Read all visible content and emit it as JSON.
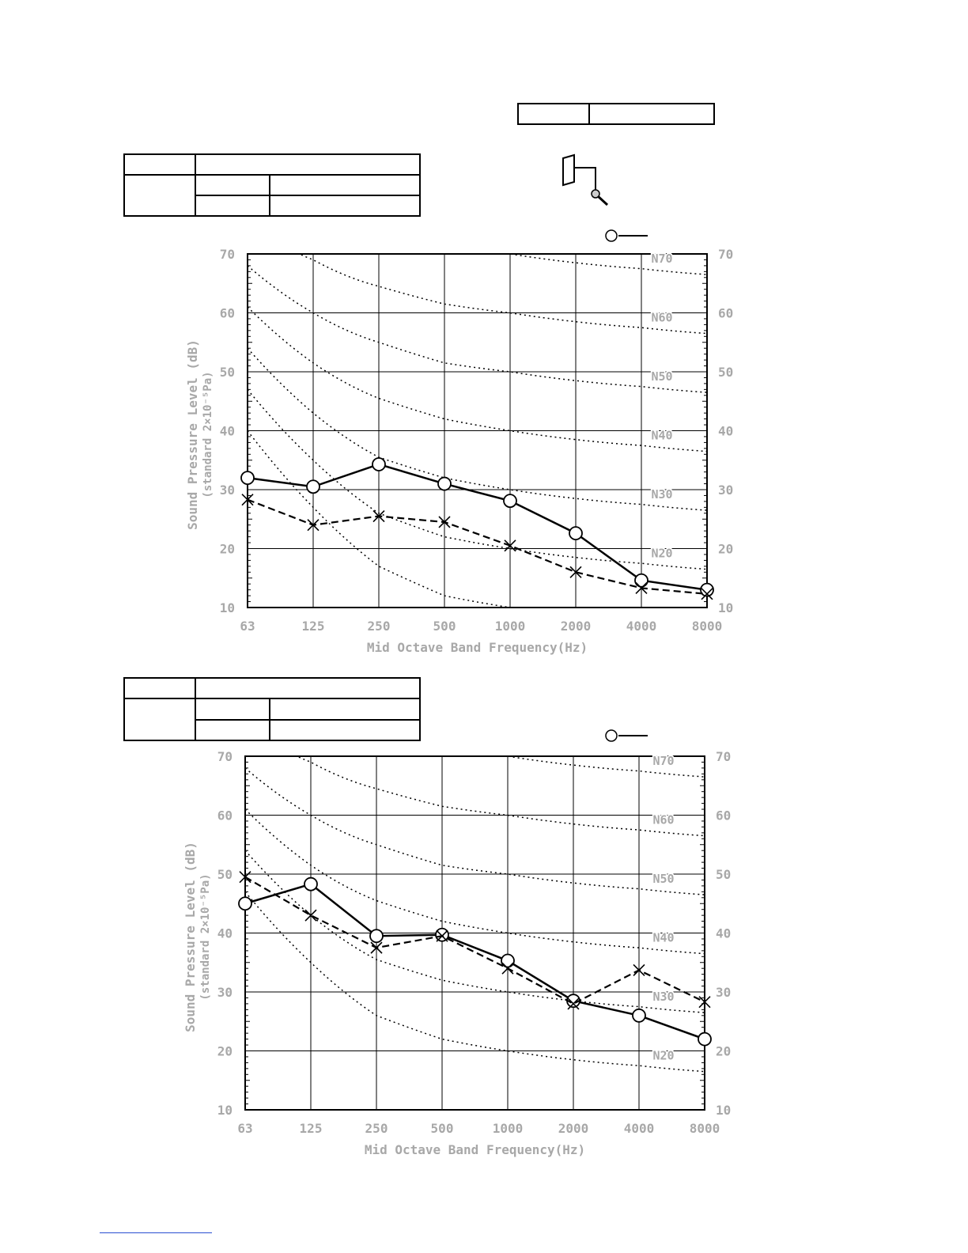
{
  "colors": {
    "label_grey": "#a8a8a8",
    "line": "#000000",
    "footer_link": "#2a4fd1"
  },
  "icons": {
    "microphone": "microphone-icon",
    "speaker": "unit-outline-icon"
  },
  "chart_data": [
    {
      "type": "line",
      "xlabel": "Mid Octave Band Frequency(Hz)",
      "ylabel": "Sound Pressure Level (dB)",
      "ylabel2": "(standard 2×10⁻⁵Pa)",
      "categories": [
        "63",
        "125",
        "250",
        "500",
        "1000",
        "2000",
        "4000",
        "8000"
      ],
      "ylim": [
        10,
        70
      ],
      "yticks": [
        10,
        20,
        30,
        40,
        50,
        60,
        70
      ],
      "series": [
        {
          "marker": "circle",
          "style": "solid",
          "values": [
            32,
            30.5,
            34.3,
            31,
            28.1,
            22.6,
            14.6,
            13
          ]
        },
        {
          "marker": "cross",
          "style": "dashed",
          "values": [
            28.3,
            24,
            25.5,
            24.5,
            20.5,
            16,
            13.3,
            12.3
          ]
        }
      ],
      "nc_curves": [
        {
          "label": "N70",
          "values": [
            82.5,
            77.5,
            74,
            71.5,
            70,
            68.5,
            67.5,
            66.5
          ]
        },
        {
          "label": "N60",
          "values": [
            75,
            69,
            64.5,
            61.5,
            60,
            58.5,
            57.5,
            56.5
          ]
        },
        {
          "label": "N50",
          "values": [
            68,
            60,
            55,
            51.5,
            50,
            48.5,
            47.5,
            46.5
          ]
        },
        {
          "label": "N40",
          "values": [
            61,
            51.5,
            45.5,
            42,
            40,
            38.5,
            37.5,
            36.5
          ]
        },
        {
          "label": "N30",
          "values": [
            54,
            43,
            35.5,
            32,
            30,
            28.5,
            27.5,
            26.5
          ]
        },
        {
          "label": "N20",
          "values": [
            47,
            35,
            26,
            22,
            20,
            18.5,
            17.5,
            16.5
          ]
        },
        {
          "label": "",
          "values": [
            40,
            27,
            17,
            12,
            10,
            9,
            8,
            7
          ]
        }
      ]
    },
    {
      "type": "line",
      "xlabel": "Mid Octave Band Frequency(Hz)",
      "ylabel": "Sound Pressure Level (dB)",
      "ylabel2": "(standard 2×10⁻⁵Pa)",
      "categories": [
        "63",
        "125",
        "250",
        "500",
        "1000",
        "2000",
        "4000",
        "8000"
      ],
      "ylim": [
        10,
        70
      ],
      "yticks": [
        10,
        20,
        30,
        40,
        50,
        60,
        70
      ],
      "series": [
        {
          "marker": "circle",
          "style": "solid",
          "values": [
            45,
            48.3,
            39.5,
            39.7,
            35.3,
            28.5,
            26,
            22
          ]
        },
        {
          "marker": "cross",
          "style": "dashed",
          "values": [
            49.5,
            43,
            37.5,
            39.5,
            34,
            28,
            33.7,
            28.3
          ]
        }
      ],
      "nc_curves": [
        {
          "label": "N70",
          "values": [
            82.5,
            77.5,
            74,
            71.5,
            70,
            68.5,
            67.5,
            66.5
          ]
        },
        {
          "label": "N60",
          "values": [
            75,
            69,
            64.5,
            61.5,
            60,
            58.5,
            57.5,
            56.5
          ]
        },
        {
          "label": "N50",
          "values": [
            68,
            60,
            55,
            51.5,
            50,
            48.5,
            47.5,
            46.5
          ]
        },
        {
          "label": "N40",
          "values": [
            61,
            51.5,
            45.5,
            42,
            40,
            38.5,
            37.5,
            36.5
          ]
        },
        {
          "label": "N30",
          "values": [
            54,
            43,
            35.5,
            32,
            30,
            28.5,
            27.5,
            26.5
          ]
        },
        {
          "label": "N20",
          "values": [
            47,
            35,
            26,
            22,
            20,
            18.5,
            17.5,
            16.5
          ]
        }
      ]
    }
  ]
}
